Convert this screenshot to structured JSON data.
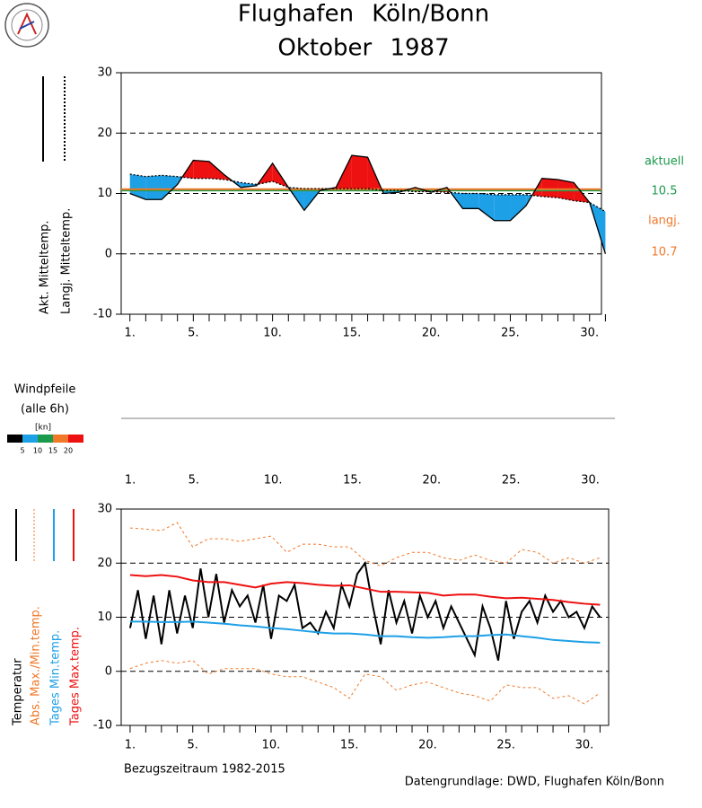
{
  "header": {
    "title": "Flughafen Köln/Bonn",
    "subtitle": "Oktober 1987"
  },
  "chart_data": [
    {
      "type": "line",
      "categories": [
        1,
        2,
        3,
        4,
        5,
        6,
        7,
        8,
        9,
        10,
        11,
        12,
        13,
        14,
        15,
        16,
        17,
        18,
        19,
        20,
        21,
        22,
        23,
        24,
        25,
        26,
        27,
        28,
        29,
        30,
        31
      ],
      "series": [
        {
          "name": "Akt. Mitteltemp.",
          "color": "#000000",
          "dashed": false,
          "values": [
            10,
            9,
            9,
            11.5,
            15.5,
            15.3,
            13,
            11,
            11.3,
            15,
            11,
            7.2,
            10.5,
            11,
            16.3,
            16,
            10,
            10.2,
            11,
            10.2,
            11,
            7.5,
            7.5,
            5.5,
            5.5,
            8,
            12.5,
            12.3,
            11.8,
            8.5,
            0
          ]
        },
        {
          "name": "Langj. Mitteltemp.",
          "color": "#000000",
          "dashed": true,
          "values": [
            13.2,
            12.8,
            13,
            12.8,
            12.5,
            12.5,
            12.3,
            11.8,
            11.5,
            12,
            11,
            10.8,
            10.8,
            10.8,
            10.8,
            10.8,
            10.5,
            10.5,
            10.3,
            10.3,
            10.2,
            10,
            10,
            9.8,
            9.8,
            9.8,
            9.5,
            9.3,
            8.8,
            8.5,
            7
          ]
        }
      ],
      "fill_above": "#ee1111",
      "fill_below": "#1ea0e6",
      "reference_lines": [
        {
          "name": "aktuell",
          "value": 10.5,
          "color": "#1a9a4a"
        },
        {
          "name": "langj.",
          "value": 10.7,
          "color": "#f07828"
        }
      ],
      "xlim": [
        0.45,
        30.75
      ],
      "xticks": [
        {
          "value": 1,
          "label": "1."
        },
        {
          "value": 5,
          "label": "5."
        },
        {
          "value": 10,
          "label": "10."
        },
        {
          "value": 15,
          "label": "15."
        },
        {
          "value": 20,
          "label": "20."
        },
        {
          "value": 25,
          "label": "25."
        },
        {
          "value": 30,
          "label": "30."
        }
      ],
      "ylim": [
        -10,
        30
      ],
      "yticks": [
        -10,
        0,
        10,
        20,
        30
      ],
      "grid": true
    },
    {
      "type": "wind",
      "title": "Windpfeile",
      "subtitle": "(alle 6h)",
      "legend_title": "[kn]",
      "legend_colors": [
        "#000000",
        "#1ea0e6",
        "#1a9a4a",
        "#f07828",
        "#ee1111"
      ],
      "legend_ticks": [
        5,
        10,
        15,
        20
      ],
      "xlim": [
        0.43,
        31.55
      ],
      "xticks": [
        {
          "value": 1,
          "label": "1."
        },
        {
          "value": 5,
          "label": "5."
        },
        {
          "value": 10,
          "label": "10."
        },
        {
          "value": 15,
          "label": "15."
        },
        {
          "value": 20,
          "label": "20."
        },
        {
          "value": 25,
          "label": "25."
        },
        {
          "value": 30,
          "label": "30."
        }
      ]
    },
    {
      "type": "line",
      "x": [
        1,
        2,
        3,
        4,
        5,
        6,
        7,
        8,
        9,
        10,
        11,
        12,
        13,
        14,
        15,
        16,
        17,
        18,
        19,
        20,
        21,
        22,
        23,
        24,
        25,
        26,
        27,
        28,
        29,
        30,
        31
      ],
      "series": [
        {
          "name": "Temperatur",
          "color": "#000000",
          "width": 2,
          "dashed": false,
          "x": [
            1,
            1.5,
            2,
            2.5,
            3,
            3.5,
            4,
            4.5,
            5,
            5.5,
            6,
            6.5,
            7,
            7.5,
            8,
            8.5,
            9,
            9.5,
            10,
            10.5,
            11,
            11.5,
            12,
            12.5,
            13,
            13.5,
            14,
            14.5,
            15,
            15.5,
            16,
            16.5,
            17,
            17.5,
            18,
            18.5,
            19,
            19.5,
            20,
            20.5,
            21,
            21.5,
            22,
            22.5,
            23,
            23.5,
            24,
            24.5,
            25,
            25.5,
            26,
            26.5,
            27,
            27.5,
            28,
            28.5,
            29,
            29.5,
            30,
            30.5,
            31
          ],
          "values": [
            8,
            15,
            6,
            14,
            5,
            15,
            7,
            14,
            8,
            19,
            10,
            18,
            9,
            15,
            12,
            14,
            9,
            16,
            6,
            14,
            13,
            16,
            8,
            9,
            7,
            11,
            8,
            16,
            12,
            18,
            20,
            12,
            5,
            15,
            9,
            13,
            7,
            14,
            10,
            13,
            8,
            12,
            9,
            6,
            3,
            12,
            8,
            2,
            13,
            6,
            11,
            13,
            9,
            14,
            11,
            13,
            10,
            11,
            8,
            12,
            10
          ]
        },
        {
          "name": "Abs. Max./Min.temp.",
          "color": "#f07828",
          "width": 1,
          "dashed": true,
          "values": [
            26.5,
            26.3,
            26,
            27.5,
            23,
            24.5,
            24.5,
            24,
            24.5,
            25,
            22,
            23.5,
            23.5,
            23,
            23,
            20.5,
            19.5,
            21,
            22,
            22,
            21,
            20.5,
            21.5,
            20.5,
            20,
            22.5,
            22,
            20,
            21,
            20,
            21
          ]
        },
        {
          "color": "#f07828",
          "width": 1,
          "dashed": true,
          "values": [
            0.5,
            1.5,
            2,
            1.5,
            2,
            -0.5,
            0.5,
            0.5,
            0.5,
            -0.5,
            -1,
            -1,
            -2,
            -3,
            -5,
            -0.5,
            -1,
            -3.5,
            -2.5,
            -2,
            -3,
            -4,
            -4.5,
            -5.5,
            -2.5,
            -3,
            -3,
            -5,
            -4.5,
            -6,
            -4
          ]
        },
        {
          "name": "Tages Min.temp.",
          "color": "#1ea0e6",
          "width": 2,
          "dashed": false,
          "values": [
            9.2,
            9.2,
            9.1,
            9.1,
            9.2,
            9,
            8.8,
            8.5,
            8.3,
            8,
            7.8,
            7.5,
            7.2,
            7,
            7,
            6.8,
            6.5,
            6.5,
            6.3,
            6.2,
            6.3,
            6.5,
            6.5,
            6.7,
            6.8,
            6.5,
            6.2,
            5.8,
            5.6,
            5.4,
            5.3
          ]
        },
        {
          "name": "Tages Max.temp.",
          "color": "#ee1111",
          "width": 2,
          "dashed": false,
          "values": [
            17.8,
            17.6,
            17.8,
            17.5,
            16.8,
            16.5,
            16.5,
            16,
            15.5,
            16.2,
            16.5,
            16.3,
            16,
            15.8,
            15.9,
            15.3,
            14.7,
            14.7,
            14.6,
            14.5,
            14,
            14.2,
            14.2,
            13.8,
            13.5,
            13.6,
            13.4,
            13.2,
            12.8,
            12.5,
            12.3
          ]
        }
      ],
      "xlim": [
        0.43,
        31.55
      ],
      "xticks": [
        {
          "value": 1,
          "label": "1."
        },
        {
          "value": 5,
          "label": "5."
        },
        {
          "value": 10,
          "label": "10."
        },
        {
          "value": 15,
          "label": "15."
        },
        {
          "value": 20,
          "label": "20."
        },
        {
          "value": 25,
          "label": "25."
        },
        {
          "value": 30,
          "label": "30."
        }
      ],
      "ylim": [
        -10,
        30
      ],
      "yticks": [
        -10,
        0,
        10,
        20,
        30
      ],
      "grid": true
    }
  ],
  "footer": {
    "period": "Bezugszeitraum 1982-2015",
    "source": "Datengrundlage: DWD, Flughafen Köln/Bonn"
  }
}
